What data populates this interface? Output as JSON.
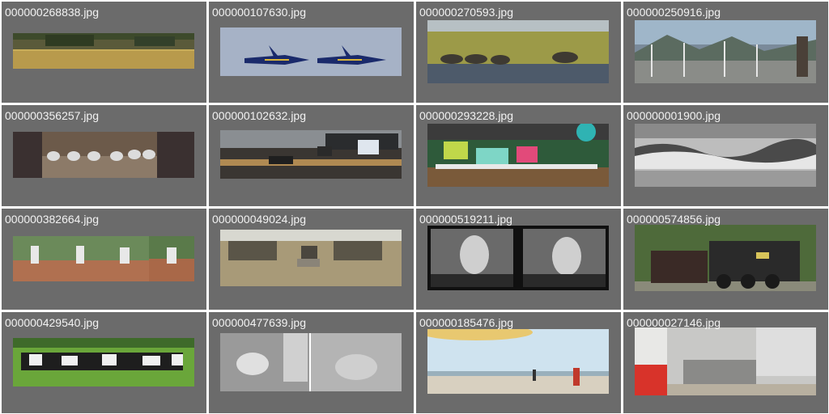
{
  "gallery": {
    "items": [
      {
        "filename": "000000268838.jpg",
        "thumbnail": "field-with-trees"
      },
      {
        "filename": "000000107630.jpg",
        "thumbnail": "blue-angels-jets"
      },
      {
        "filename": "000000270593.jpg",
        "thumbnail": "elephants-by-water"
      },
      {
        "filename": "000000250916.jpg",
        "thumbnail": "marina-boats"
      },
      {
        "filename": "000000356257.jpg",
        "thumbnail": "shoe-planters"
      },
      {
        "filename": "000000102632.jpg",
        "thumbnail": "office-desks"
      },
      {
        "filename": "000000293228.jpg",
        "thumbnail": "bookstore-display"
      },
      {
        "filename": "000000001900.jpg",
        "thumbnail": "ocean-wave-bw"
      },
      {
        "filename": "000000382664.jpg",
        "thumbnail": "baseball-pitcher-sequence"
      },
      {
        "filename": "000000049024.jpg",
        "thumbnail": "zebras-savanna"
      },
      {
        "filename": "000000519211.jpg",
        "thumbnail": "woman-phone-bw"
      },
      {
        "filename": "000000574856.jpg",
        "thumbnail": "steam-locomotive"
      },
      {
        "filename": "000000429540.jpg",
        "thumbnail": "cows-in-field"
      },
      {
        "filename": "000000477639.jpg",
        "thumbnail": "sheep-feeder-bw"
      },
      {
        "filename": "000000185476.jpg",
        "thumbnail": "beach-people"
      },
      {
        "filename": "000000027146.jpg",
        "thumbnail": "kitchen-interior"
      }
    ]
  },
  "colors": {
    "cell_background": "#6b6b6b",
    "gap": "#ffffff",
    "filename_text": "#f2f2f2"
  }
}
